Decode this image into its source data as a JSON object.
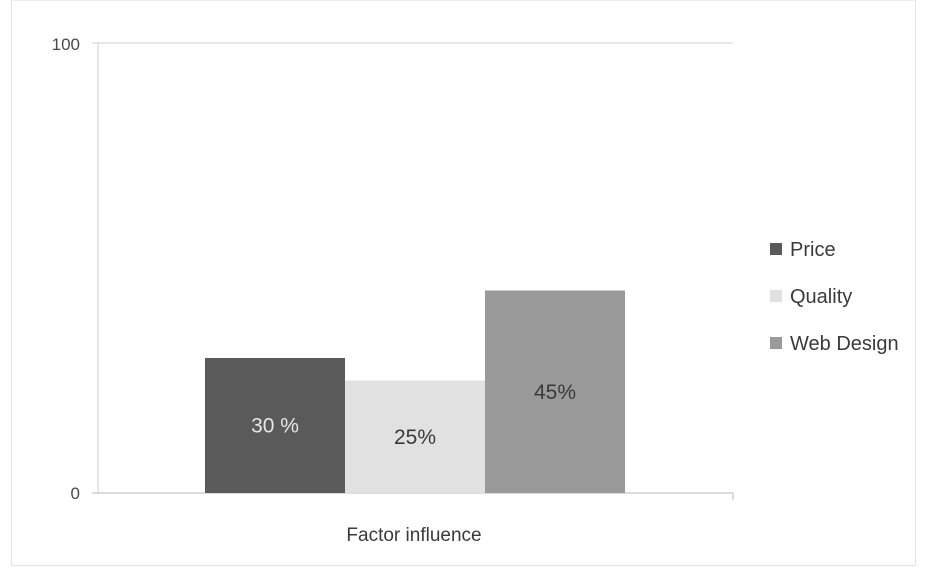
{
  "chart_data": {
    "type": "bar",
    "title": "",
    "xlabel": "",
    "ylabel": "",
    "categories": [
      "Factor influence"
    ],
    "ylim": [
      0,
      100
    ],
    "yticks": [
      "0",
      "100"
    ],
    "grid": false,
    "legend_position": "right",
    "series": [
      {
        "name": "Price",
        "values": [
          30
        ],
        "label": "30 %",
        "color": "#5a5a5a",
        "label_color": "#e6e6e6"
      },
      {
        "name": "Quality",
        "values": [
          25
        ],
        "label": "25%",
        "color": "#e1e1e1",
        "label_color": "#3a3a3a"
      },
      {
        "name": "Web Design",
        "values": [
          45
        ],
        "label": "45%",
        "color": "#9a9a9a",
        "label_color": "#3a3a3a"
      }
    ],
    "category_label": "Factor influence"
  }
}
